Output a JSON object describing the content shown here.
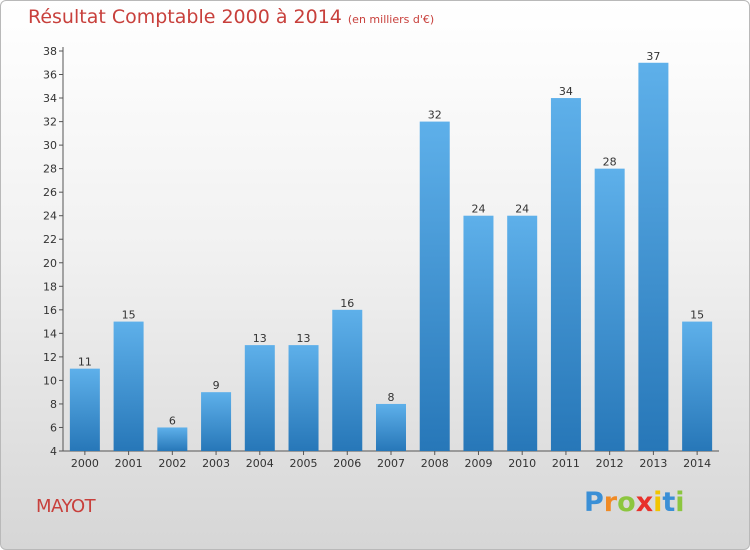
{
  "chart_data": {
    "type": "bar",
    "title": "Résultat Comptable 2000 à 2014",
    "title_unit": "(en milliers d'€)",
    "categories": [
      "2000",
      "2001",
      "2002",
      "2003",
      "2004",
      "2005",
      "2006",
      "2007",
      "2008",
      "2009",
      "2010",
      "2011",
      "2012",
      "2013",
      "2014"
    ],
    "values": [
      11,
      15,
      6,
      9,
      13,
      13,
      16,
      8,
      32,
      24,
      24,
      34,
      28,
      37,
      15
    ],
    "ylim": [
      4,
      38
    ],
    "yticks": [
      4,
      6,
      8,
      10,
      12,
      14,
      16,
      18,
      20,
      22,
      24,
      26,
      28,
      30,
      32,
      34,
      36,
      38
    ],
    "grid": false,
    "bar_color_top": "#5eb0ea",
    "bar_color_bottom": "#2777b8"
  },
  "commune": "MAYOT",
  "logo": {
    "letters": [
      "P",
      "r",
      "o",
      "x",
      "i",
      "t",
      "i"
    ],
    "colors": [
      "#3a8fd6",
      "#f08a24",
      "#8cc63f",
      "#e8312b",
      "#f2c500",
      "#3a8fd6",
      "#8cc63f"
    ]
  }
}
